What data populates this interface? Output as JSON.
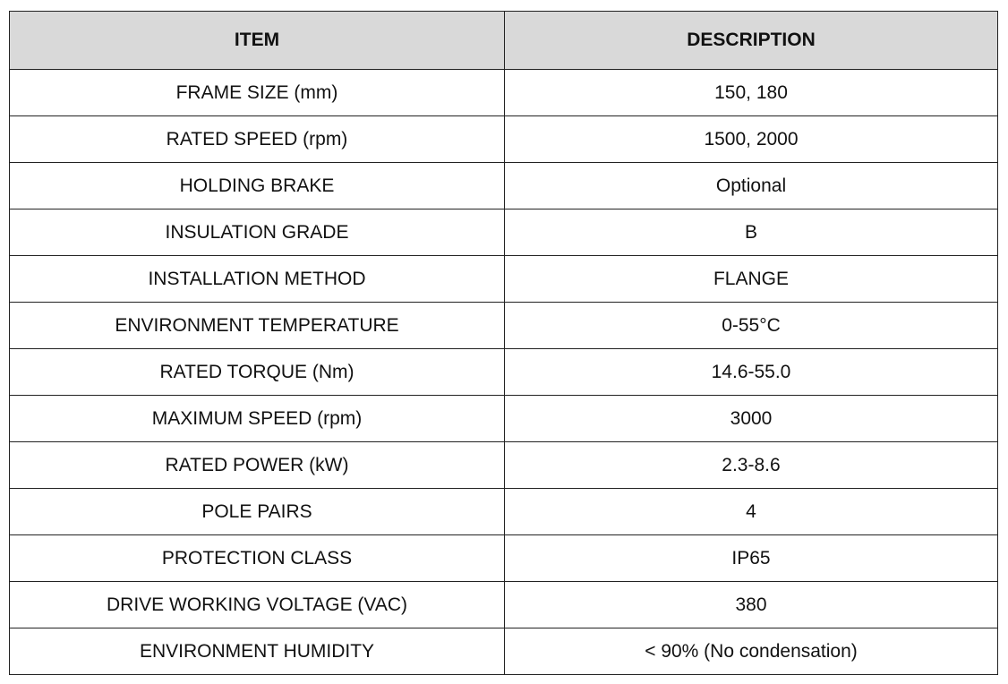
{
  "table": {
    "headers": [
      "ITEM",
      "DESCRIPTION"
    ],
    "rows": [
      {
        "item": "FRAME SIZE (mm)",
        "description": "150, 180"
      },
      {
        "item": "RATED SPEED (rpm)",
        "description": "1500, 2000"
      },
      {
        "item": "HOLDING BRAKE",
        "description": "Optional"
      },
      {
        "item": "INSULATION GRADE",
        "description": "B"
      },
      {
        "item": "INSTALLATION METHOD",
        "description": "FLANGE"
      },
      {
        "item": "ENVIRONMENT TEMPERATURE",
        "description": "0-55°C"
      },
      {
        "item": "RATED TORQUE (Nm)",
        "description": "14.6-55.0"
      },
      {
        "item": "MAXIMUM SPEED (rpm)",
        "description": "3000"
      },
      {
        "item": "RATED POWER (kW)",
        "description": "2.3-8.6"
      },
      {
        "item": "POLE PAIRS",
        "description": "4"
      },
      {
        "item": "PROTECTION CLASS",
        "description": "IP65"
      },
      {
        "item": "DRIVE WORKING VOLTAGE (VAC)",
        "description": "380"
      },
      {
        "item": "ENVIRONMENT HUMIDITY",
        "description": "< 90% (No condensation)"
      }
    ]
  },
  "colors": {
    "header_bg": "#d9d9d9",
    "border": "#222222"
  }
}
